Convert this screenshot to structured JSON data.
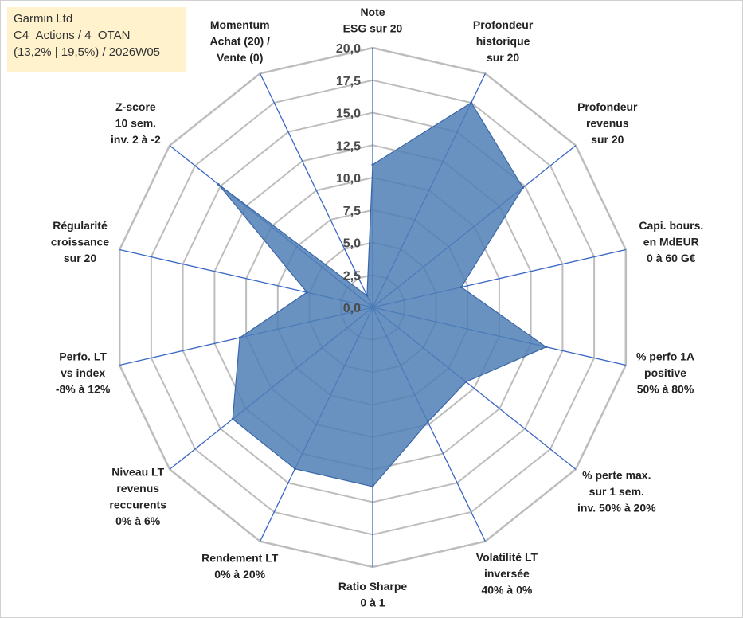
{
  "info": {
    "company": "Garmin Ltd",
    "portfolio": "C4_Actions / 4_OTAN",
    "stats": "(13,2% | 19,5%) / 2026W05"
  },
  "colors": {
    "fill": "#4f7fb6",
    "stroke": "#3a66a8",
    "spoke": "#3a66c4",
    "grid": "#bdbdbd",
    "info_bg": "#fff2cc"
  },
  "chart_data": {
    "type": "radar",
    "title": "",
    "rmax": 20,
    "ticks": [
      "0,0",
      "2,5",
      "5,0",
      "7,5",
      "10,0",
      "12,5",
      "15,0",
      "17,5",
      "20,0"
    ],
    "axes": [
      {
        "lines": [
          "Note",
          "ESG sur 20"
        ],
        "value": 11.0
      },
      {
        "lines": [
          "Profondeur",
          "historique",
          "sur 20"
        ],
        "value": 17.5
      },
      {
        "lines": [
          "Profondeur",
          "revenus",
          "sur 20"
        ],
        "value": 14.8
      },
      {
        "lines": [
          "Capi. bours.",
          "en MdEUR",
          "0 à 60 G€"
        ],
        "value": 7.0
      },
      {
        "lines": [
          "% perfo 1A",
          "positive",
          "50% à 80%"
        ],
        "value": 13.7
      },
      {
        "lines": [
          "% perte max.",
          "sur 1 sem.",
          "inv. 50% à 20%"
        ],
        "value": 9.2
      },
      {
        "lines": [
          "Volatilité LT",
          "inversée",
          "40% à 0%"
        ],
        "value": 9.8
      },
      {
        "lines": [
          "Ratio Sharpe",
          "0 à 1"
        ],
        "value": 13.8
      },
      {
        "lines": [
          "Rendement LT",
          "0% à 20%"
        ],
        "value": 13.8
      },
      {
        "lines": [
          "Niveau LT",
          "revenus",
          "reccurents",
          "0% à 6%"
        ],
        "value": 13.8
      },
      {
        "lines": [
          "Perfo. LT",
          "vs index",
          "-8% à 12%"
        ],
        "value": 10.5
      },
      {
        "lines": [
          "Régularité",
          "croissance",
          "sur 20"
        ],
        "value": 5.2
      },
      {
        "lines": [
          "Z-score",
          "10 sem.",
          "inv. 2 à -2"
        ],
        "value": 15.2
      },
      {
        "lines": [
          "Momentum",
          "Achat (20) /",
          "Vente (0)"
        ],
        "value": 1.0
      }
    ]
  }
}
